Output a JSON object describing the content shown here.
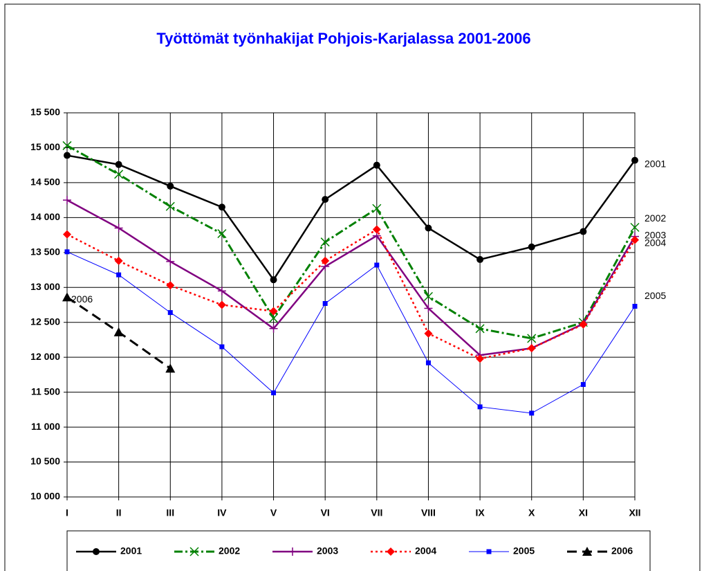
{
  "chart_data": {
    "type": "line",
    "title": "Työttömät työnhakijat Pohjois-Karjalassa 2001-2006",
    "categories": [
      "I",
      "II",
      "III",
      "IV",
      "V",
      "VI",
      "VII",
      "VIII",
      "IX",
      "X",
      "XI",
      "XII"
    ],
    "ylim": [
      10000,
      15500
    ],
    "yticks": [
      {
        "value": 10000,
        "label": "10 000"
      },
      {
        "value": 10500,
        "label": "10 500"
      },
      {
        "value": 11000,
        "label": "11 000"
      },
      {
        "value": 11500,
        "label": "11 500"
      },
      {
        "value": 12000,
        "label": "12 000"
      },
      {
        "value": 12500,
        "label": "12 500"
      },
      {
        "value": 13000,
        "label": "13 000"
      },
      {
        "value": 13500,
        "label": "13 500"
      },
      {
        "value": 14000,
        "label": "14 000"
      },
      {
        "value": 14500,
        "label": "14 500"
      },
      {
        "value": 15000,
        "label": "15 000"
      },
      {
        "value": 15500,
        "label": "15 500"
      }
    ],
    "grid": true,
    "legend": "bottom",
    "series": [
      {
        "name": "2001",
        "color": "#000000",
        "dash": "solid",
        "marker": "circle",
        "values": [
          14890,
          14760,
          14450,
          14150,
          13110,
          14260,
          14750,
          13850,
          13400,
          13580,
          13800,
          14820
        ]
      },
      {
        "name": "2002",
        "color": "#008000",
        "dash": "dashdot",
        "marker": "x",
        "values": [
          15030,
          14620,
          14160,
          13770,
          12560,
          13650,
          14130,
          12870,
          12410,
          12270,
          12500,
          13860
        ]
      },
      {
        "name": "2003",
        "color": "#800080",
        "dash": "solid",
        "marker": "plus",
        "values": [
          14250,
          13850,
          13370,
          12950,
          12410,
          13300,
          13740,
          12700,
          12030,
          12130,
          12480,
          13730
        ]
      },
      {
        "name": "2004",
        "color": "#ff0000",
        "dash": "dot",
        "marker": "diamond",
        "values": [
          13760,
          13380,
          13030,
          12750,
          12660,
          13380,
          13830,
          12340,
          11980,
          12130,
          12470,
          13680
        ]
      },
      {
        "name": "2005",
        "color": "#0000ff",
        "dash": "thin",
        "marker": "square",
        "values": [
          13510,
          13180,
          12640,
          12150,
          11490,
          12770,
          13320,
          11920,
          11290,
          11200,
          11610,
          12730
        ]
      },
      {
        "name": "2006",
        "color": "#000000",
        "dash": "dash",
        "marker": "triangle",
        "values": [
          12860,
          12360,
          11840,
          null,
          null,
          null,
          null,
          null,
          null,
          null,
          null,
          null
        ]
      }
    ]
  }
}
